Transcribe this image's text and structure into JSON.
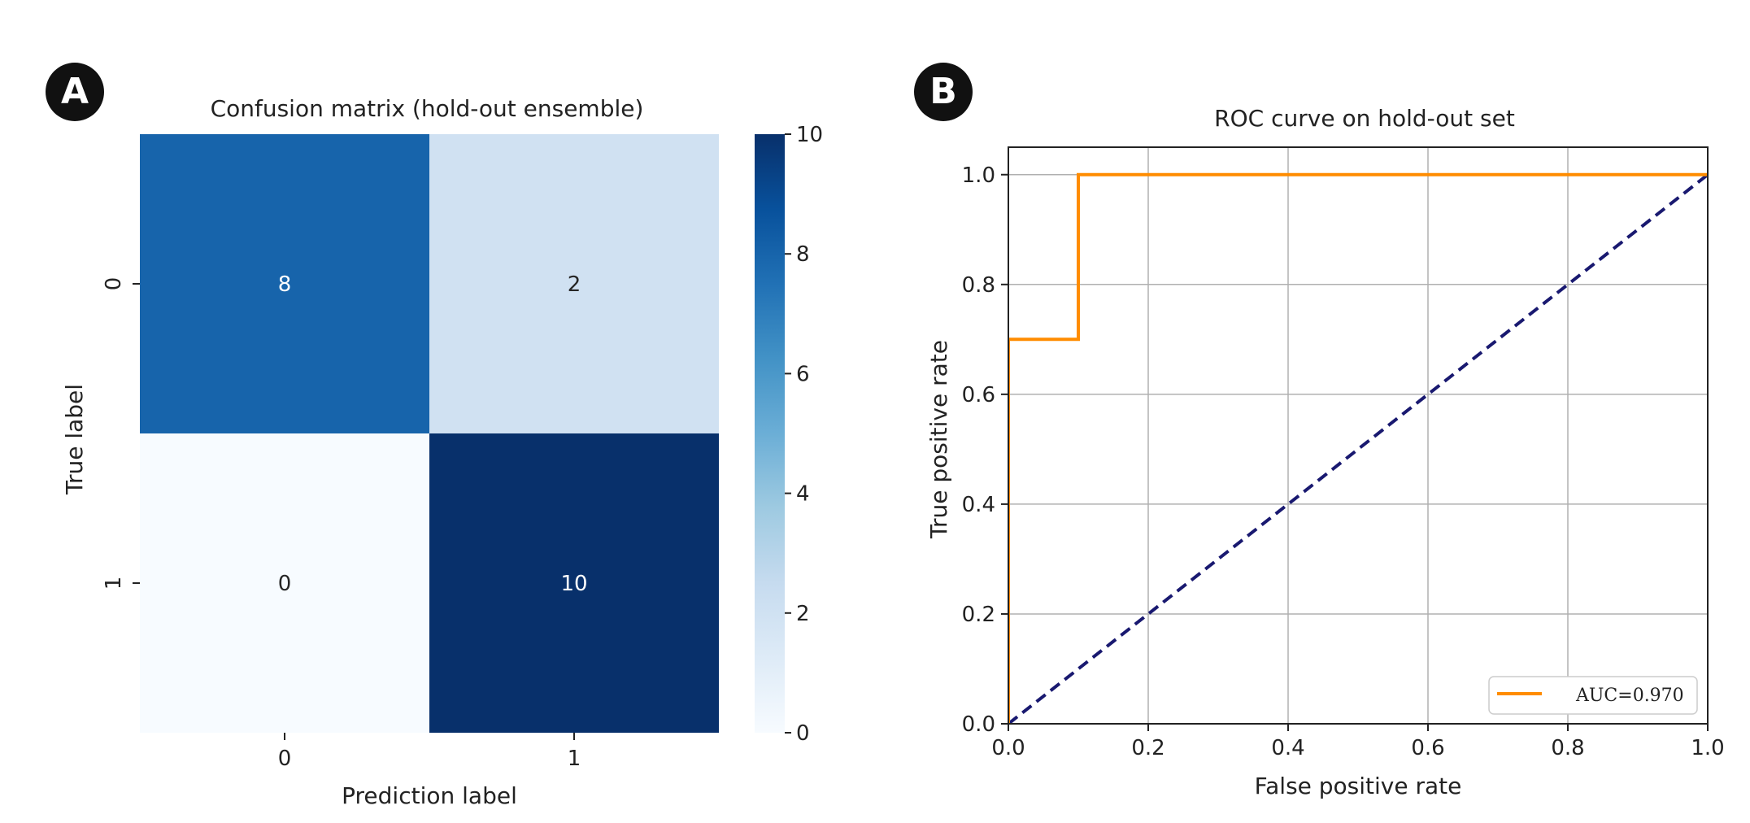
{
  "figure": {
    "panels": [
      {
        "badge": "A"
      },
      {
        "badge": "B"
      }
    ]
  },
  "chart_data": [
    {
      "type": "heatmap",
      "title": "Confusion matrix (hold-out ensemble)",
      "xlabel": "Prediction label",
      "ylabel": "True label",
      "x_categories": [
        "0",
        "1"
      ],
      "y_categories": [
        "0",
        "1"
      ],
      "values": [
        [
          8,
          2
        ],
        [
          0,
          10
        ]
      ],
      "annotations": [
        "8",
        "2",
        "0",
        "10"
      ],
      "colorbar": {
        "min": 0,
        "max": 10,
        "ticks": [
          "0",
          "2",
          "4",
          "6",
          "8",
          "10"
        ],
        "colormap": "Blues"
      }
    },
    {
      "type": "line",
      "title": "ROC curve on hold-out set",
      "xlabel": "False positive rate",
      "ylabel": "True positive rate",
      "xlim": [
        0.0,
        1.0
      ],
      "ylim": [
        0.0,
        1.05
      ],
      "x_ticks": [
        "0.0",
        "0.2",
        "0.4",
        "0.6",
        "0.8",
        "1.0"
      ],
      "y_ticks": [
        "0.0",
        "0.2",
        "0.4",
        "0.6",
        "0.8",
        "1.0"
      ],
      "grid": true,
      "legend_position": "lower-right",
      "series": [
        {
          "name": "AUC=0.970",
          "color": "#ff8c00",
          "style": "solid",
          "x": [
            0.0,
            0.0,
            0.1,
            0.1,
            1.0
          ],
          "y": [
            0.0,
            0.7,
            0.7,
            1.0,
            1.0
          ]
        },
        {
          "color": "#191970",
          "style": "dashed",
          "x": [
            0.0,
            1.0
          ],
          "y": [
            0.0,
            1.0
          ]
        }
      ]
    }
  ]
}
